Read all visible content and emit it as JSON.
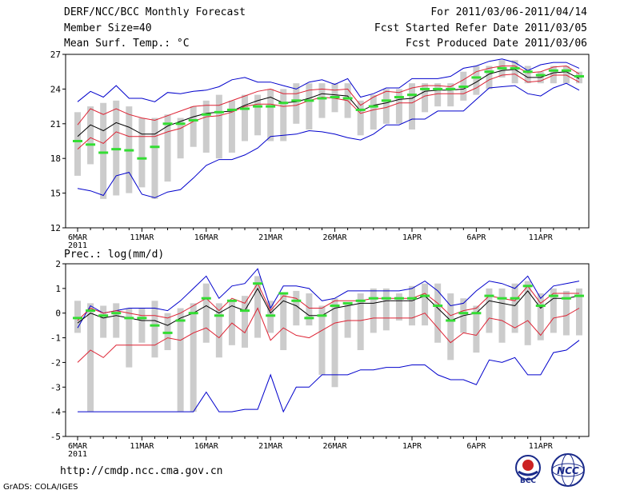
{
  "header": {
    "title": "DERF/NCC/BCC Monthly Forecast",
    "member_size": "Member Size=40",
    "variable": "Mean Surf. Temp.: °C",
    "period": "For 2011/03/06-2011/04/14",
    "refer_date": "Fcst Started Refer Date 2011/03/05",
    "produced_date": "Fcst Produced Date 2011/03/06"
  },
  "footer": {
    "url": "http://cmdp.ncc.cma.gov.cn",
    "grads": "GrADS: COLA/IGES"
  },
  "logos": {
    "bcc": "BCC",
    "ncc": "NCC"
  },
  "colors": {
    "box": "#cccccc",
    "median": "#33dd33",
    "mean": "#000000",
    "std": "#dd2233",
    "range": "#0000cc",
    "frame": "#000000"
  },
  "chart_data": [
    {
      "type": "box",
      "title": "Mean Surf. Temp.: °C",
      "ylim": [
        12,
        27
      ],
      "yticks": [
        12,
        15,
        18,
        21,
        24,
        27
      ],
      "xlim": [
        1,
        40
      ],
      "xtick_labels": [
        {
          "day": 1,
          "label": "6MAR"
        },
        {
          "day": 6,
          "label": "11MAR"
        },
        {
          "day": 11,
          "label": "16MAR"
        },
        {
          "day": 16,
          "label": "21MAR"
        },
        {
          "day": 21,
          "label": "26MAR"
        },
        {
          "day": 27,
          "label": "1APR"
        },
        {
          "day": 32,
          "label": "6APR"
        },
        {
          "day": 37,
          "label": "11APR"
        }
      ],
      "year_label": "2011",
      "box_low": [
        16.5,
        17.5,
        14.5,
        14.8,
        15.0,
        15.5,
        14.5,
        16.0,
        18.0,
        19.0,
        18.5,
        18.0,
        18.5,
        19.5,
        20.0,
        19.5,
        19.5,
        21.0,
        20.5,
        21.5,
        22.0,
        21.5,
        20.0,
        20.5,
        21.0,
        21.0,
        20.5,
        22.0,
        22.5,
        22.5,
        23.0,
        23.5,
        24.0,
        25.0,
        24.5,
        24.5,
        24.5,
        24.5,
        24.5,
        24.5
      ],
      "box_high": [
        22.0,
        22.5,
        22.8,
        23.0,
        22.5,
        21.5,
        21.5,
        21.8,
        21.5,
        22.5,
        23.0,
        23.5,
        23.0,
        23.5,
        23.5,
        24.0,
        24.0,
        24.5,
        24.5,
        24.5,
        24.5,
        24.5,
        23.0,
        23.5,
        24.0,
        24.0,
        24.5,
        24.5,
        24.5,
        24.5,
        25.5,
        26.0,
        26.0,
        26.5,
        26.5,
        26.0,
        25.5,
        26.0,
        26.0,
        25.5
      ],
      "median": [
        19.5,
        19.2,
        18.5,
        18.8,
        18.7,
        18.0,
        19.0,
        21.0,
        21.0,
        21.3,
        21.8,
        22.0,
        22.2,
        22.3,
        22.5,
        22.5,
        22.8,
        23.0,
        23.0,
        23.2,
        23.3,
        23.2,
        22.2,
        22.5,
        23.0,
        23.3,
        23.5,
        24.0,
        24.0,
        24.0,
        24.2,
        25.0,
        25.5,
        25.8,
        25.8,
        25.5,
        25.2,
        25.6,
        25.6,
        25.1
      ],
      "mean": [
        19.9,
        20.9,
        20.4,
        21.1,
        20.7,
        20.1,
        20.1,
        20.8,
        21.2,
        21.6,
        21.9,
        22.0,
        22.1,
        22.6,
        23.0,
        23.3,
        22.8,
        22.9,
        23.2,
        23.6,
        23.5,
        23.4,
        22.1,
        22.6,
        22.8,
        23.1,
        23.2,
        23.8,
        23.9,
        23.9,
        24.0,
        24.6,
        25.3,
        25.6,
        25.7,
        25.0,
        25.0,
        25.4,
        25.5,
        24.9
      ],
      "std_upper": [
        20.9,
        22.3,
        21.8,
        22.3,
        21.8,
        21.5,
        21.3,
        21.7,
        22.1,
        22.5,
        22.6,
        22.6,
        23.0,
        23.4,
        23.8,
        24.0,
        23.6,
        23.6,
        23.9,
        24.0,
        23.9,
        24.0,
        22.6,
        23.3,
        23.8,
        23.7,
        24.1,
        24.3,
        24.3,
        24.2,
        24.8,
        25.5,
        25.8,
        26.0,
        26.0,
        25.4,
        25.5,
        25.9,
        26.0,
        25.3
      ],
      "std_lower": [
        18.8,
        19.8,
        19.3,
        20.3,
        19.9,
        19.9,
        19.9,
        20.3,
        20.6,
        21.2,
        21.6,
        21.7,
        22.0,
        22.5,
        22.7,
        22.7,
        22.5,
        22.6,
        23.0,
        23.3,
        23.2,
        23.0,
        21.9,
        22.2,
        22.4,
        22.8,
        22.8,
        23.4,
        23.6,
        23.6,
        23.6,
        24.1,
        24.8,
        25.2,
        25.3,
        24.6,
        24.7,
        25.2,
        25.2,
        24.6
      ],
      "range_max": [
        22.9,
        23.8,
        23.3,
        24.3,
        23.2,
        23.2,
        22.9,
        23.7,
        23.6,
        23.8,
        23.9,
        24.2,
        24.8,
        25.0,
        24.6,
        24.6,
        24.3,
        24.0,
        24.6,
        24.8,
        24.4,
        24.9,
        23.3,
        23.6,
        24.1,
        24.1,
        24.9,
        24.9,
        24.9,
        25.1,
        25.8,
        26.0,
        26.4,
        26.6,
        26.3,
        25.6,
        26.1,
        26.3,
        26.3,
        25.8
      ],
      "range_min": [
        15.4,
        15.2,
        14.8,
        16.5,
        16.8,
        14.9,
        14.6,
        15.1,
        15.3,
        16.3,
        17.4,
        17.9,
        17.9,
        18.3,
        18.9,
        19.9,
        20.0,
        20.1,
        20.4,
        20.3,
        20.1,
        19.8,
        19.6,
        20.1,
        20.9,
        20.9,
        21.4,
        21.4,
        22.1,
        22.1,
        22.1,
        23.1,
        24.1,
        24.2,
        24.3,
        23.6,
        23.4,
        24.1,
        24.5,
        23.9
      ]
    },
    {
      "type": "box",
      "title": "Prec.: log(mm/d)",
      "ylim": [
        -5,
        2
      ],
      "yticks": [
        -5,
        -4,
        -3,
        -2,
        -1,
        0,
        1,
        2
      ],
      "xlim": [
        1,
        40
      ],
      "xtick_labels": [
        {
          "day": 1,
          "label": "6MAR"
        },
        {
          "day": 6,
          "label": "11MAR"
        },
        {
          "day": 11,
          "label": "16MAR"
        },
        {
          "day": 16,
          "label": "21MAR"
        },
        {
          "day": 21,
          "label": "26MAR"
        },
        {
          "day": 27,
          "label": "1APR"
        },
        {
          "day": 32,
          "label": "6APR"
        },
        {
          "day": 37,
          "label": "11APR"
        }
      ],
      "year_label": "2011",
      "box_low": [
        -0.8,
        -4.0,
        -1.0,
        -1.0,
        -2.2,
        -1.2,
        -1.8,
        -1.5,
        -4.0,
        -4.0,
        -1.2,
        -1.8,
        -1.3,
        -1.4,
        -1.0,
        -0.8,
        -1.5,
        -0.5,
        -0.5,
        -2.5,
        -3.0,
        -1.0,
        -1.5,
        -0.8,
        -0.7,
        -0.3,
        -0.5,
        -0.5,
        -1.2,
        -1.9,
        -0.8,
        -1.6,
        -0.8,
        -1.2,
        -0.8,
        -1.3,
        -1.1,
        -0.8,
        -0.9,
        -0.9
      ],
      "box_high": [
        0.5,
        0.4,
        0.3,
        0.4,
        0.2,
        0.2,
        0.5,
        0.0,
        0.2,
        0.4,
        1.2,
        0.4,
        0.5,
        0.7,
        1.5,
        0.5,
        0.8,
        0.9,
        0.8,
        0.3,
        0.6,
        0.4,
        0.8,
        1.0,
        1.0,
        0.8,
        1.1,
        1.2,
        1.2,
        0.8,
        0.6,
        0.3,
        1.0,
        1.0,
        1.2,
        1.3,
        0.8,
        1.0,
        0.9,
        1.0
      ],
      "median": [
        -0.2,
        0.1,
        -0.1,
        0.0,
        -0.2,
        -0.2,
        -0.5,
        -0.8,
        -0.3,
        0.0,
        0.6,
        -0.1,
        0.5,
        0.1,
        1.2,
        -0.1,
        0.8,
        0.5,
        -0.2,
        -0.1,
        0.3,
        0.4,
        0.5,
        0.6,
        0.6,
        0.6,
        0.6,
        0.7,
        0.3,
        -0.3,
        0.0,
        0.0,
        0.7,
        0.6,
        0.6,
        1.1,
        0.3,
        0.7,
        0.6,
        0.7
      ],
      "mean": [
        -0.4,
        0.0,
        -0.2,
        -0.1,
        -0.2,
        -0.3,
        -0.3,
        -0.5,
        -0.2,
        0.0,
        0.3,
        0.0,
        0.3,
        0.1,
        1.0,
        0.0,
        0.5,
        0.3,
        -0.1,
        -0.1,
        0.2,
        0.3,
        0.4,
        0.4,
        0.5,
        0.5,
        0.5,
        0.7,
        0.2,
        -0.3,
        -0.1,
        0.0,
        0.5,
        0.4,
        0.3,
        0.9,
        0.2,
        0.6,
        0.6,
        0.7
      ],
      "std_upper": [
        -0.3,
        0.2,
        0.0,
        0.1,
        0.0,
        -0.1,
        -0.1,
        -0.2,
        0.0,
        0.3,
        0.6,
        0.1,
        0.6,
        0.4,
        1.2,
        0.1,
        0.7,
        0.6,
        0.2,
        0.2,
        0.5,
        0.5,
        0.5,
        0.6,
        0.6,
        0.6,
        0.6,
        0.8,
        0.4,
        -0.1,
        0.1,
        0.2,
        0.7,
        0.6,
        0.5,
        1.1,
        0.4,
        0.8,
        0.8,
        0.8
      ],
      "std_lower": [
        -2.0,
        -1.5,
        -1.8,
        -1.3,
        -1.3,
        -1.3,
        -1.3,
        -1.0,
        -1.1,
        -0.8,
        -0.6,
        -1.0,
        -0.4,
        -0.8,
        0.2,
        -1.1,
        -0.6,
        -0.9,
        -1.0,
        -0.7,
        -0.4,
        -0.3,
        -0.3,
        -0.2,
        -0.2,
        -0.2,
        -0.2,
        0.0,
        -0.6,
        -1.2,
        -0.8,
        -0.9,
        -0.2,
        -0.3,
        -0.6,
        -0.3,
        -0.9,
        -0.2,
        -0.1,
        0.2
      ],
      "range_max": [
        -0.6,
        0.3,
        0.0,
        0.1,
        0.2,
        0.2,
        0.2,
        0.1,
        0.5,
        1.0,
        1.5,
        0.6,
        1.1,
        1.2,
        1.8,
        0.2,
        1.1,
        1.1,
        1.0,
        0.5,
        0.6,
        0.9,
        0.9,
        0.9,
        0.9,
        0.9,
        1.0,
        1.3,
        0.9,
        0.3,
        0.4,
        0.9,
        1.3,
        1.2,
        1.0,
        1.5,
        0.6,
        1.1,
        1.2,
        1.3
      ],
      "range_min": [
        -4.0,
        -4.0,
        -4.0,
        -4.0,
        -4.0,
        -4.0,
        -4.0,
        -4.0,
        -4.0,
        -4.0,
        -3.2,
        -4.0,
        -4.0,
        -3.9,
        -3.9,
        -2.5,
        -4.0,
        -3.0,
        -3.0,
        -2.5,
        -2.5,
        -2.5,
        -2.3,
        -2.3,
        -2.2,
        -2.2,
        -2.1,
        -2.1,
        -2.5,
        -2.7,
        -2.7,
        -2.9,
        -1.9,
        -2.0,
        -1.8,
        -2.5,
        -2.5,
        -1.6,
        -1.5,
        -1.1
      ]
    }
  ]
}
